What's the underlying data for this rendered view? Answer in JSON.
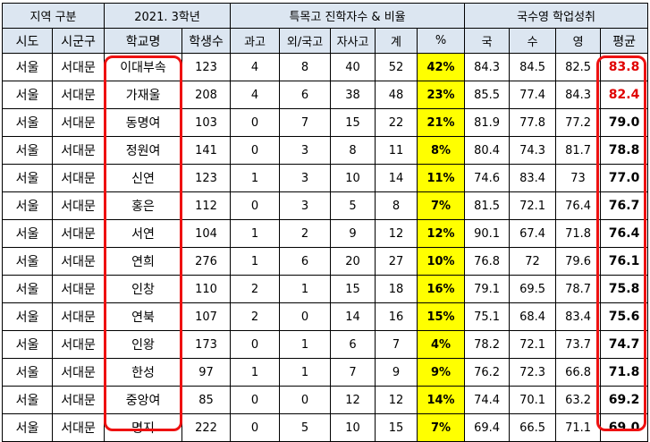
{
  "header": {
    "group1": "지역 구분",
    "group2": "2021. 3학년",
    "group3": "특목고 진학자수 & 비율",
    "group4": "국수영 학업성취",
    "cols": [
      "시도",
      "시군구",
      "학교명",
      "학생수",
      "과고",
      "외/국고",
      "자사고",
      "계",
      "%",
      "국",
      "수",
      "영",
      "평균"
    ]
  },
  "rows": [
    {
      "sido": "서울",
      "sigungu": "서대문",
      "school": "이대부속",
      "students": "123",
      "sci": "4",
      "foreign": "8",
      "private": "40",
      "total": "52",
      "pct": "42%",
      "kor": "84.3",
      "math": "84.5",
      "eng": "82.5",
      "avg": "83.8",
      "avg_red": true
    },
    {
      "sido": "서울",
      "sigungu": "서대문",
      "school": "가재울",
      "students": "208",
      "sci": "4",
      "foreign": "6",
      "private": "38",
      "total": "48",
      "pct": "23%",
      "kor": "85.5",
      "math": "77.4",
      "eng": "84.3",
      "avg": "82.4",
      "avg_red": true
    },
    {
      "sido": "서울",
      "sigungu": "서대문",
      "school": "동명여",
      "students": "103",
      "sci": "0",
      "foreign": "7",
      "private": "15",
      "total": "22",
      "pct": "21%",
      "kor": "81.9",
      "math": "77.8",
      "eng": "77.2",
      "avg": "79.0",
      "avg_red": false
    },
    {
      "sido": "서울",
      "sigungu": "서대문",
      "school": "정원여",
      "students": "141",
      "sci": "0",
      "foreign": "3",
      "private": "8",
      "total": "11",
      "pct": "8%",
      "kor": "80.4",
      "math": "74.3",
      "eng": "81.7",
      "avg": "78.8",
      "avg_red": false
    },
    {
      "sido": "서울",
      "sigungu": "서대문",
      "school": "신연",
      "students": "123",
      "sci": "1",
      "foreign": "3",
      "private": "10",
      "total": "14",
      "pct": "11%",
      "kor": "74.6",
      "math": "83.4",
      "eng": "73",
      "avg": "77.0",
      "avg_red": false
    },
    {
      "sido": "서울",
      "sigungu": "서대문",
      "school": "홍은",
      "students": "112",
      "sci": "0",
      "foreign": "3",
      "private": "5",
      "total": "8",
      "pct": "7%",
      "kor": "81.5",
      "math": "72.1",
      "eng": "76.4",
      "avg": "76.7",
      "avg_red": false
    },
    {
      "sido": "서울",
      "sigungu": "서대문",
      "school": "서연",
      "students": "104",
      "sci": "1",
      "foreign": "2",
      "private": "9",
      "total": "12",
      "pct": "12%",
      "kor": "90.1",
      "math": "67.4",
      "eng": "71.8",
      "avg": "76.4",
      "avg_red": false
    },
    {
      "sido": "서울",
      "sigungu": "서대문",
      "school": "연희",
      "students": "276",
      "sci": "1",
      "foreign": "6",
      "private": "20",
      "total": "27",
      "pct": "10%",
      "kor": "76.8",
      "math": "72",
      "eng": "79.6",
      "avg": "76.1",
      "avg_red": false
    },
    {
      "sido": "서울",
      "sigungu": "서대문",
      "school": "인창",
      "students": "110",
      "sci": "2",
      "foreign": "1",
      "private": "15",
      "total": "18",
      "pct": "16%",
      "kor": "79.1",
      "math": "69.5",
      "eng": "78.7",
      "avg": "75.8",
      "avg_red": false
    },
    {
      "sido": "서울",
      "sigungu": "서대문",
      "school": "연북",
      "students": "107",
      "sci": "2",
      "foreign": "0",
      "private": "14",
      "total": "16",
      "pct": "15%",
      "kor": "75.1",
      "math": "68.4",
      "eng": "83.4",
      "avg": "75.6",
      "avg_red": false
    },
    {
      "sido": "서울",
      "sigungu": "서대문",
      "school": "인왕",
      "students": "173",
      "sci": "0",
      "foreign": "1",
      "private": "6",
      "total": "7",
      "pct": "4%",
      "kor": "78.2",
      "math": "72.1",
      "eng": "73.7",
      "avg": "74.7",
      "avg_red": false
    },
    {
      "sido": "서울",
      "sigungu": "서대문",
      "school": "한성",
      "students": "97",
      "sci": "1",
      "foreign": "1",
      "private": "7",
      "total": "9",
      "pct": "9%",
      "kor": "76.2",
      "math": "72.3",
      "eng": "66.8",
      "avg": "71.8",
      "avg_red": false
    },
    {
      "sido": "서울",
      "sigungu": "서대문",
      "school": "중앙여",
      "students": "85",
      "sci": "0",
      "foreign": "0",
      "private": "12",
      "total": "12",
      "pct": "14%",
      "kor": "74.4",
      "math": "70.1",
      "eng": "63.2",
      "avg": "69.2",
      "avg_red": false
    },
    {
      "sido": "서울",
      "sigungu": "서대문",
      "school": "명지",
      "students": "222",
      "sci": "0",
      "foreign": "5",
      "private": "10",
      "total": "15",
      "pct": "7%",
      "kor": "69.4",
      "math": "66.5",
      "eng": "71.1",
      "avg": "69.0",
      "avg_red": false
    }
  ],
  "colors": {
    "header_bg": "#dce6f1",
    "highlight": "#ffff00",
    "frame": "#ee1111",
    "red_text": "#e00000"
  }
}
